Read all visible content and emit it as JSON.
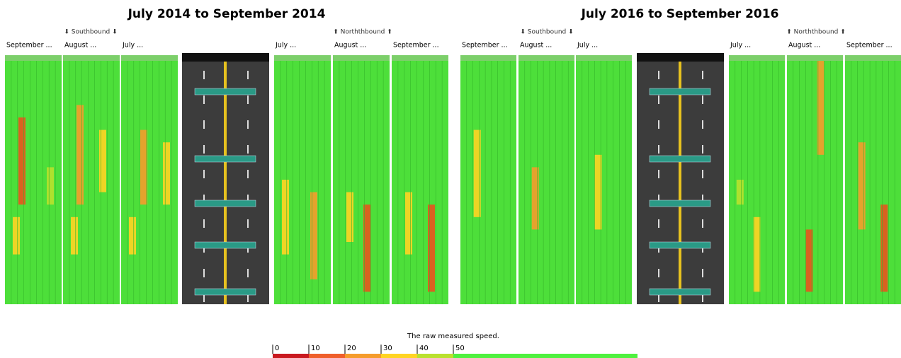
{
  "panels": [
    {
      "title": "July 2014 to September 2014",
      "southbound": "⬇ Southbound ⬇",
      "northbound": "⬆ Norththbound ⬆",
      "columns": [
        "September ...",
        "August ...",
        "July ...",
        "July ...",
        "August ...",
        "September ..."
      ]
    },
    {
      "title": "July 2016 to September 2016",
      "southbound": "⬇ Southbound ⬇",
      "northbound": "⬆ Norththbound ⬆",
      "columns": [
        "September ...",
        "August ...",
        "July ...",
        "July ...",
        "August ...",
        "September ..."
      ]
    }
  ],
  "legend": {
    "title": "The raw measured speed.",
    "ticks": [
      0,
      10,
      20,
      30,
      40,
      50
    ],
    "colors": [
      "#c9191f",
      "#ef5f2b",
      "#f59c2c",
      "#ffd423",
      "#b9e12e",
      "#4ff13f"
    ]
  }
}
